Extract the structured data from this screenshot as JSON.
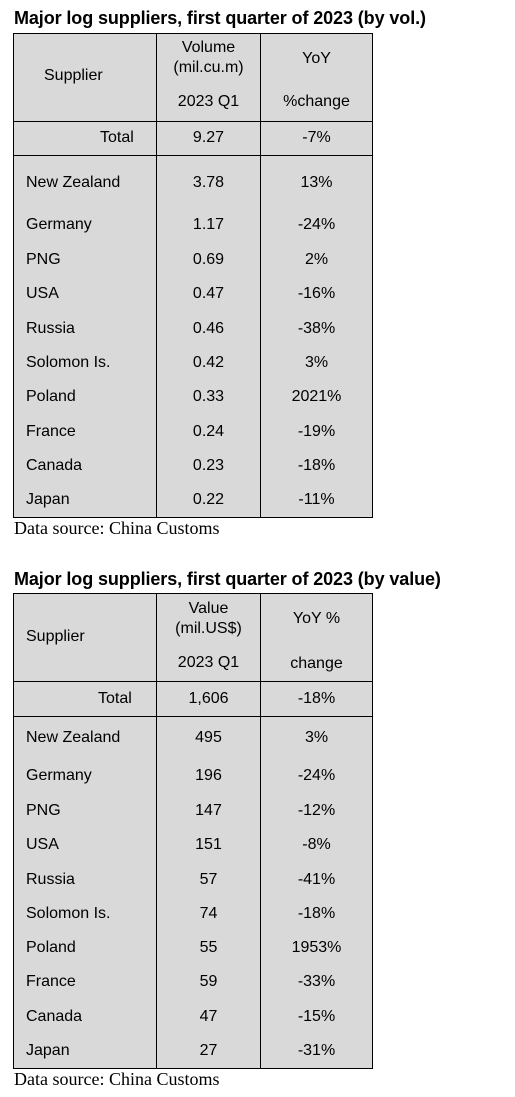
{
  "table1": {
    "title": "Major log suppliers, first quarter of 2023 (by vol.)",
    "header": {
      "supplier": "Supplier",
      "metric_line1": "Volume",
      "metric_line2": "(mil.cu.m)",
      "period": "2023 Q1",
      "yoy_line1": "YoY",
      "yoy_line2": "%change"
    },
    "total": {
      "label": "Total",
      "value": "9.27",
      "yoy": "-7%"
    },
    "rows": [
      {
        "supplier": "New Zealand",
        "value": "3.78",
        "yoy": "13%"
      },
      {
        "supplier": "Germany",
        "value": "1.17",
        "yoy": "-24%"
      },
      {
        "supplier": "PNG",
        "value": "0.69",
        "yoy": "2%"
      },
      {
        "supplier": "USA",
        "value": "0.47",
        "yoy": "-16%"
      },
      {
        "supplier": "Russia",
        "value": "0.46",
        "yoy": "-38%"
      },
      {
        "supplier": "Solomon Is.",
        "value": "0.42",
        "yoy": "3%"
      },
      {
        "supplier": "Poland",
        "value": "0.33",
        "yoy": "2021%"
      },
      {
        "supplier": "France",
        "value": "0.24",
        "yoy": "-19%"
      },
      {
        "supplier": "Canada",
        "value": "0.23",
        "yoy": "-18%"
      },
      {
        "supplier": "Japan",
        "value": "0.22",
        "yoy": "-11%"
      }
    ],
    "source": "Data source: China Customs"
  },
  "table2": {
    "title": "Major log suppliers, first quarter of 2023 (by value)",
    "header": {
      "supplier": "Supplier",
      "metric_line1": "Value",
      "metric_line2": "(mil.US$)",
      "period": "2023 Q1",
      "yoy_line1": "YoY %",
      "yoy_line2": "change"
    },
    "total": {
      "label": "Total",
      "value": "1,606",
      "yoy": "-18%"
    },
    "rows": [
      {
        "supplier": "New Zealand",
        "value": "495",
        "yoy": "3%"
      },
      {
        "supplier": "Germany",
        "value": "196",
        "yoy": "-24%"
      },
      {
        "supplier": "PNG",
        "value": "147",
        "yoy": "-12%"
      },
      {
        "supplier": "USA",
        "value": "151",
        "yoy": "-8%"
      },
      {
        "supplier": "Russia",
        "value": "57",
        "yoy": "-41%"
      },
      {
        "supplier": "Solomon Is.",
        "value": "74",
        "yoy": "-18%"
      },
      {
        "supplier": "Poland",
        "value": "55",
        "yoy": "1953%"
      },
      {
        "supplier": "France",
        "value": "59",
        "yoy": "-33%"
      },
      {
        "supplier": "Canada",
        "value": "47",
        "yoy": "-15%"
      },
      {
        "supplier": "Japan",
        "value": "27",
        "yoy": "-31%"
      }
    ],
    "source": "Data source: China Customs"
  }
}
